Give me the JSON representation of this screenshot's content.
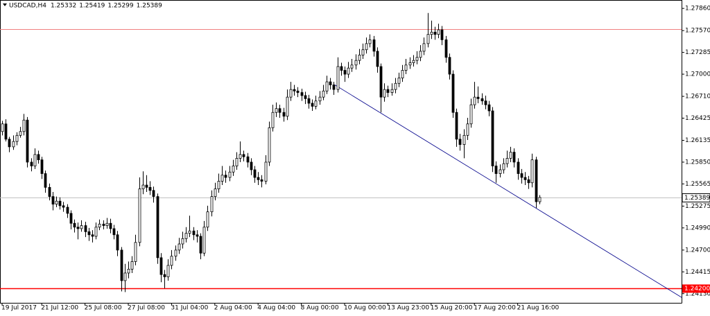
{
  "chart_data": {
    "type": "candlestick",
    "title": "USDCAD,H4",
    "categories": [
      "19 Jul 2017",
      null,
      null,
      null,
      null,
      null,
      null,
      null,
      null,
      null,
      null,
      "21 Jul 12:00",
      null,
      null,
      null,
      null,
      null,
      null,
      null,
      null,
      null,
      null,
      null,
      "25 Jul 08:00",
      null,
      null,
      null,
      null,
      null,
      null,
      null,
      null,
      null,
      null,
      null,
      "27 Jul 08:00",
      null,
      null,
      null,
      null,
      null,
      null,
      null,
      null,
      null,
      null,
      null,
      "31 Jul 04:00",
      null,
      null,
      null,
      null,
      null,
      null,
      null,
      null,
      null,
      null,
      null,
      "2 Aug 04:00",
      null,
      null,
      null,
      null,
      null,
      null,
      null,
      null,
      null,
      null,
      null,
      "4 Aug 04:00",
      null,
      null,
      null,
      null,
      null,
      null,
      null,
      null,
      null,
      null,
      null,
      "8 Aug 00:00",
      null,
      null,
      null,
      null,
      null,
      null,
      null,
      null,
      null,
      null,
      null,
      "10 Aug 00:00",
      null,
      null,
      null,
      null,
      null,
      null,
      null,
      null,
      null,
      null,
      null,
      "13 Aug 23:00",
      null,
      null,
      null,
      null,
      null,
      null,
      null,
      null,
      null,
      null,
      null,
      "15 Aug 20:00",
      null,
      null,
      null,
      null,
      null,
      null,
      null,
      null,
      null,
      null,
      null,
      "17 Aug 20:00",
      null,
      null,
      null,
      null,
      null,
      null,
      null,
      null,
      null,
      null,
      null,
      "21 Aug 16:00",
      null,
      null,
      null,
      null,
      null,
      null
    ],
    "ohlc": [
      [
        1.2625,
        1.2639,
        1.262,
        1.2635
      ],
      [
        1.2635,
        1.2641,
        1.2612,
        1.2615
      ],
      [
        1.2615,
        1.2618,
        1.2598,
        1.2605
      ],
      [
        1.2605,
        1.262,
        1.2601,
        1.2612
      ],
      [
        1.2612,
        1.2624,
        1.2607,
        1.262
      ],
      [
        1.262,
        1.2631,
        1.2617,
        1.2625
      ],
      [
        1.2625,
        1.2648,
        1.262,
        1.264
      ],
      [
        1.264,
        1.2644,
        1.2578,
        1.2585
      ],
      [
        1.2585,
        1.259,
        1.2573,
        1.258
      ],
      [
        1.258,
        1.2603,
        1.2576,
        1.2595
      ],
      [
        1.2595,
        1.26,
        1.2583,
        1.2588
      ],
      [
        1.2588,
        1.2592,
        1.2563,
        1.257
      ],
      [
        1.257,
        1.2574,
        1.2545,
        1.2552
      ],
      [
        1.2552,
        1.2557,
        1.2535,
        1.254
      ],
      [
        1.254,
        1.2546,
        1.2522,
        1.253
      ],
      [
        1.253,
        1.254,
        1.2526,
        1.2534
      ],
      [
        1.2534,
        1.2539,
        1.2523,
        1.2528
      ],
      [
        1.2528,
        1.2533,
        1.252,
        1.2526
      ],
      [
        1.2526,
        1.253,
        1.2512,
        1.2518
      ],
      [
        1.2518,
        1.2522,
        1.2497,
        1.2505
      ],
      [
        1.2505,
        1.251,
        1.2493,
        1.25
      ],
      [
        1.25,
        1.2506,
        1.2484,
        1.2498
      ],
      [
        1.2498,
        1.2509,
        1.2494,
        1.2502
      ],
      [
        1.2502,
        1.2507,
        1.2487,
        1.2494
      ],
      [
        1.2494,
        1.2499,
        1.2482,
        1.249
      ],
      [
        1.249,
        1.2496,
        1.248,
        1.2488
      ],
      [
        1.2488,
        1.2506,
        1.2484,
        1.25
      ],
      [
        1.25,
        1.251,
        1.2496,
        1.2504
      ],
      [
        1.2504,
        1.2509,
        1.2497,
        1.2502
      ],
      [
        1.2502,
        1.2512,
        1.2498,
        1.2505
      ],
      [
        1.2505,
        1.2511,
        1.2492,
        1.2498
      ],
      [
        1.2498,
        1.2503,
        1.2484,
        1.249
      ],
      [
        1.249,
        1.2495,
        1.2462,
        1.247
      ],
      [
        1.247,
        1.2474,
        1.2416,
        1.243
      ],
      [
        1.243,
        1.2452,
        1.2415,
        1.244
      ],
      [
        1.244,
        1.2455,
        1.2433,
        1.2445
      ],
      [
        1.2445,
        1.2462,
        1.244,
        1.2455
      ],
      [
        1.2455,
        1.249,
        1.245,
        1.248
      ],
      [
        1.248,
        1.2565,
        1.2475,
        1.255
      ],
      [
        1.255,
        1.2573,
        1.2543,
        1.2555
      ],
      [
        1.2555,
        1.2568,
        1.2546,
        1.2552
      ],
      [
        1.2552,
        1.256,
        1.2542,
        1.2548
      ],
      [
        1.2548,
        1.2553,
        1.2532,
        1.254
      ],
      [
        1.254,
        1.2544,
        1.2452,
        1.246
      ],
      [
        1.246,
        1.2466,
        1.2428,
        1.2438
      ],
      [
        1.2438,
        1.2444,
        1.242,
        1.2435
      ],
      [
        1.2435,
        1.2458,
        1.243,
        1.245
      ],
      [
        1.245,
        1.247,
        1.2445,
        1.2462
      ],
      [
        1.2462,
        1.2476,
        1.2456,
        1.247
      ],
      [
        1.247,
        1.2486,
        1.2465,
        1.2478
      ],
      [
        1.2478,
        1.2494,
        1.2472,
        1.2485
      ],
      [
        1.2485,
        1.25,
        1.248,
        1.2492
      ],
      [
        1.2492,
        1.2515,
        1.2487,
        1.2495
      ],
      [
        1.2495,
        1.25,
        1.2483,
        1.249
      ],
      [
        1.249,
        1.2496,
        1.248,
        1.2488
      ],
      [
        1.2488,
        1.2492,
        1.2458,
        1.2466
      ],
      [
        1.2466,
        1.2508,
        1.2462,
        1.25
      ],
      [
        1.25,
        1.2528,
        1.2495,
        1.252
      ],
      [
        1.252,
        1.2548,
        1.2514,
        1.254
      ],
      [
        1.254,
        1.2558,
        1.2535,
        1.255
      ],
      [
        1.255,
        1.257,
        1.2545,
        1.256
      ],
      [
        1.256,
        1.258,
        1.2555,
        1.2568
      ],
      [
        1.2568,
        1.2574,
        1.2558,
        1.2565
      ],
      [
        1.2565,
        1.258,
        1.256,
        1.2572
      ],
      [
        1.2572,
        1.2588,
        1.2567,
        1.258
      ],
      [
        1.258,
        1.2598,
        1.2575,
        1.259
      ],
      [
        1.259,
        1.2612,
        1.2585,
        1.2595
      ],
      [
        1.2595,
        1.26,
        1.2586,
        1.2592
      ],
      [
        1.2592,
        1.2597,
        1.2578,
        1.2585
      ],
      [
        1.2585,
        1.259,
        1.2568,
        1.2575
      ],
      [
        1.2575,
        1.258,
        1.2558,
        1.2565
      ],
      [
        1.2565,
        1.2572,
        1.2555,
        1.2562
      ],
      [
        1.2562,
        1.2568,
        1.2552,
        1.256
      ],
      [
        1.256,
        1.2594,
        1.2556,
        1.2585
      ],
      [
        1.2585,
        1.2638,
        1.258,
        1.263
      ],
      [
        1.263,
        1.266,
        1.2625,
        1.265
      ],
      [
        1.265,
        1.2663,
        1.2644,
        1.2655
      ],
      [
        1.2655,
        1.266,
        1.2643,
        1.265
      ],
      [
        1.265,
        1.2656,
        1.2638,
        1.2645
      ],
      [
        1.2645,
        1.268,
        1.264,
        1.267
      ],
      [
        1.267,
        1.269,
        1.2665,
        1.268
      ],
      [
        1.268,
        1.2686,
        1.2672,
        1.2678
      ],
      [
        1.2678,
        1.2683,
        1.267,
        1.2676
      ],
      [
        1.2676,
        1.2681,
        1.2665,
        1.2672
      ],
      [
        1.2672,
        1.2677,
        1.2661,
        1.2668
      ],
      [
        1.2668,
        1.2673,
        1.2655,
        1.2662
      ],
      [
        1.2662,
        1.2667,
        1.2652,
        1.2658
      ],
      [
        1.2658,
        1.2672,
        1.2654,
        1.2665
      ],
      [
        1.2665,
        1.2678,
        1.266,
        1.267
      ],
      [
        1.267,
        1.2686,
        1.2666,
        1.2678
      ],
      [
        1.2678,
        1.2698,
        1.2674,
        1.269
      ],
      [
        1.269,
        1.2695,
        1.268,
        1.2686
      ],
      [
        1.2686,
        1.269,
        1.2673,
        1.268
      ],
      [
        1.268,
        1.2722,
        1.2676,
        1.271
      ],
      [
        1.271,
        1.2715,
        1.2698,
        1.2705
      ],
      [
        1.2705,
        1.271,
        1.269,
        1.27
      ],
      [
        1.27,
        1.2716,
        1.2695,
        1.2708
      ],
      [
        1.2708,
        1.272,
        1.2703,
        1.2712
      ],
      [
        1.2712,
        1.2726,
        1.2706,
        1.2718
      ],
      [
        1.2718,
        1.2733,
        1.2713,
        1.2725
      ],
      [
        1.2725,
        1.274,
        1.272,
        1.2732
      ],
      [
        1.2732,
        1.2748,
        1.2727,
        1.274
      ],
      [
        1.274,
        1.2752,
        1.2735,
        1.2745
      ],
      [
        1.2745,
        1.275,
        1.2723,
        1.273
      ],
      [
        1.273,
        1.2735,
        1.2702,
        1.271
      ],
      [
        1.271,
        1.2714,
        1.265,
        1.267
      ],
      [
        1.267,
        1.2688,
        1.2664,
        1.268
      ],
      [
        1.268,
        1.2685,
        1.267,
        1.2676
      ],
      [
        1.2676,
        1.2688,
        1.2672,
        1.268
      ],
      [
        1.268,
        1.2695,
        1.2675,
        1.2688
      ],
      [
        1.2688,
        1.2702,
        1.2683,
        1.2695
      ],
      [
        1.2695,
        1.2712,
        1.269,
        1.2705
      ],
      [
        1.2705,
        1.272,
        1.27,
        1.2712
      ],
      [
        1.2712,
        1.2722,
        1.2707,
        1.2715
      ],
      [
        1.2715,
        1.2725,
        1.271,
        1.2718
      ],
      [
        1.2718,
        1.273,
        1.2713,
        1.2722
      ],
      [
        1.2722,
        1.2738,
        1.2717,
        1.273
      ],
      [
        1.273,
        1.2748,
        1.2725,
        1.274
      ],
      [
        1.274,
        1.278,
        1.2735,
        1.2752
      ],
      [
        1.2752,
        1.277,
        1.2746,
        1.2755
      ],
      [
        1.2755,
        1.2762,
        1.2745,
        1.2752
      ],
      [
        1.2752,
        1.2766,
        1.2747,
        1.2758
      ],
      [
        1.2758,
        1.2763,
        1.2738,
        1.2745
      ],
      [
        1.2745,
        1.275,
        1.2715,
        1.2722
      ],
      [
        1.2722,
        1.2727,
        1.2693,
        1.27
      ],
      [
        1.27,
        1.2705,
        1.2643,
        1.265
      ],
      [
        1.265,
        1.2655,
        1.2605,
        1.2615
      ],
      [
        1.2615,
        1.2622,
        1.26,
        1.2608
      ],
      [
        1.2608,
        1.2628,
        1.259,
        1.262
      ],
      [
        1.262,
        1.2643,
        1.2614,
        1.2635
      ],
      [
        1.2635,
        1.2668,
        1.263,
        1.266
      ],
      [
        1.266,
        1.269,
        1.2655,
        1.267
      ],
      [
        1.267,
        1.2684,
        1.2662,
        1.2668
      ],
      [
        1.2668,
        1.2675,
        1.266,
        1.2665
      ],
      [
        1.2665,
        1.2672,
        1.2654,
        1.266
      ],
      [
        1.266,
        1.2665,
        1.2645,
        1.2652
      ],
      [
        1.2652,
        1.2657,
        1.2572,
        1.258
      ],
      [
        1.258,
        1.2586,
        1.2558,
        1.257
      ],
      [
        1.257,
        1.2582,
        1.2565,
        1.2575
      ],
      [
        1.2575,
        1.259,
        1.257,
        1.2583
      ],
      [
        1.2583,
        1.26,
        1.2578,
        1.259
      ],
      [
        1.259,
        1.2605,
        1.2585,
        1.2598
      ],
      [
        1.2598,
        1.2603,
        1.2578,
        1.2585
      ],
      [
        1.2585,
        1.259,
        1.2562,
        1.257
      ],
      [
        1.257,
        1.2576,
        1.2557,
        1.2565
      ],
      [
        1.2565,
        1.2572,
        1.2555,
        1.2562
      ],
      [
        1.2562,
        1.2567,
        1.255,
        1.2558
      ],
      [
        1.2558,
        1.2596,
        1.2552,
        1.2588
      ],
      [
        1.2588,
        1.2592,
        1.2525,
        1.25332
      ],
      [
        1.25332,
        1.25419,
        1.25299,
        1.25389
      ]
    ],
    "ylim": [
      1.2401,
      1.2797
    ],
    "yticks": [
      {
        "value": 1.2786,
        "label": "1.27860"
      },
      {
        "value": 1.2757,
        "label": "1.27570"
      },
      {
        "value": 1.27285,
        "label": "1.27285"
      },
      {
        "value": 1.27,
        "label": "1.27000"
      },
      {
        "value": 1.2671,
        "label": "1.26710"
      },
      {
        "value": 1.26425,
        "label": "1.26425"
      },
      {
        "value": 1.26135,
        "label": "1.26135"
      },
      {
        "value": 1.2585,
        "label": "1.25850"
      },
      {
        "value": 1.25565,
        "label": "1.25565"
      },
      {
        "value": 1.25275,
        "label": "1.25275"
      },
      {
        "value": 1.2499,
        "label": "1.24990"
      },
      {
        "value": 1.247,
        "label": "1.24700"
      },
      {
        "value": 1.24415,
        "label": "1.24415"
      },
      {
        "value": 1.2413,
        "label": "1.24130"
      }
    ],
    "levels": [
      {
        "value": 1.2759,
        "color": "#f08080"
      },
      {
        "value": 1.242,
        "label": "1.24200",
        "color": "#ff0000"
      }
    ],
    "trendline": {
      "x": [
        92.3,
        188.5
      ],
      "y": [
        1.2686,
        1.2408
      ],
      "color": "#00008b"
    },
    "bull_color": "#ffffff",
    "bear_color": "#000000",
    "price_line_color": "#c0c0c0"
  }
}
